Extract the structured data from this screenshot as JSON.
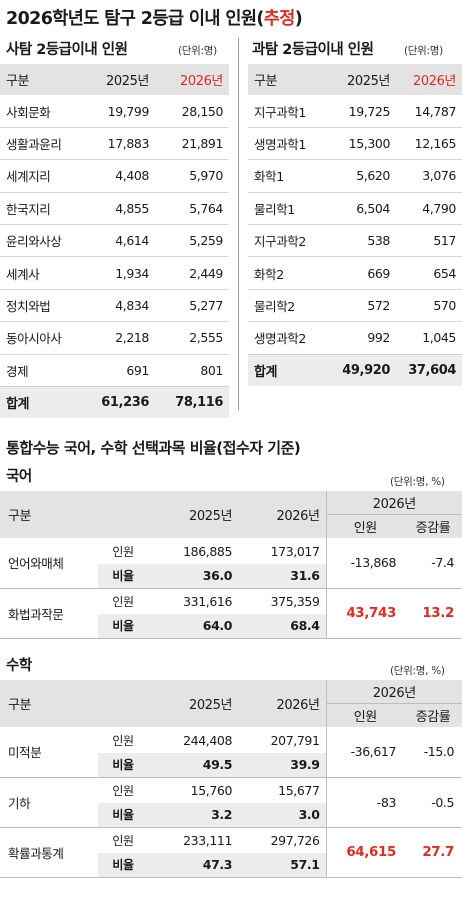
{
  "title": {
    "prefix": "2026학년도 탐구 2등급 이내 인원(",
    "highlight": "추정",
    "suffix": ")"
  },
  "social": {
    "title": "사탐 2등급이내 인원",
    "unit": "(단위:명)",
    "headers": [
      "구분",
      "2025년",
      "2026년"
    ],
    "rows": [
      {
        "name": "사회문화",
        "y2025": "19,799",
        "y2026": "28,150"
      },
      {
        "name": "생활과윤리",
        "y2025": "17,883",
        "y2026": "21,891"
      },
      {
        "name": "세계지리",
        "y2025": "4,408",
        "y2026": "5,970"
      },
      {
        "name": "한국지리",
        "y2025": "4,855",
        "y2026": "5,764"
      },
      {
        "name": "윤리와사상",
        "y2025": "4,614",
        "y2026": "5,259"
      },
      {
        "name": "세계사",
        "y2025": "1,934",
        "y2026": "2,449"
      },
      {
        "name": "정치와법",
        "y2025": "4,834",
        "y2026": "5,277"
      },
      {
        "name": "동아시아사",
        "y2025": "2,218",
        "y2026": "2,555"
      },
      {
        "name": "경제",
        "y2025": "691",
        "y2026": "801"
      }
    ],
    "total": {
      "name": "합계",
      "y2025": "61,236",
      "y2026": "78,116"
    }
  },
  "science": {
    "title": "과탐 2등급이내 인원",
    "unit": "(단위:명)",
    "headers": [
      "구분",
      "2025년",
      "2026년"
    ],
    "rows": [
      {
        "name": "지구과학1",
        "y2025": "19,725",
        "y2026": "14,787"
      },
      {
        "name": "생명과학1",
        "y2025": "15,300",
        "y2026": "12,165"
      },
      {
        "name": "화학1",
        "y2025": "5,620",
        "y2026": "3,076"
      },
      {
        "name": "물리학1",
        "y2025": "6,504",
        "y2026": "4,790"
      },
      {
        "name": "지구과학2",
        "y2025": "538",
        "y2026": "517"
      },
      {
        "name": "화학2",
        "y2025": "669",
        "y2026": "654"
      },
      {
        "name": "물리학2",
        "y2025": "572",
        "y2026": "570"
      },
      {
        "name": "생명과학2",
        "y2025": "992",
        "y2026": "1,045"
      }
    ],
    "total": {
      "name": "합계",
      "y2025": "49,920",
      "y2026": "37,604"
    }
  },
  "section2_title": "통합수능 국어, 수학 선택과목 비율(접수자 기준)",
  "korean": {
    "title": "국어",
    "unit": "(단위:명, %)",
    "h_gubun": "구분",
    "h_2025": "2025년",
    "h_2026": "2026년",
    "h_2026_group": "2026년",
    "h_count": "인원",
    "h_rate": "증감률",
    "label_count": "인원",
    "label_ratio": "비율",
    "subjects": [
      {
        "name": "언어와매체",
        "c2025": "186,885",
        "c2026": "173,017",
        "r2025": "36.0",
        "r2026": "31.6",
        "diff": "-13,868",
        "rate": "-7.4"
      },
      {
        "name": "화법과작문",
        "c2025": "331,616",
        "c2026": "375,359",
        "r2025": "64.0",
        "r2026": "68.4",
        "diff": "43,743",
        "rate": "13.2"
      }
    ]
  },
  "math": {
    "title": "수학",
    "unit": "(단위:명, %)",
    "h_gubun": "구분",
    "h_2025": "2025년",
    "h_2026": "2026년",
    "h_2026_group": "2026년",
    "h_count": "인원",
    "h_rate": "증감률",
    "label_count": "인원",
    "label_ratio": "비율",
    "subjects": [
      {
        "name": "미적분",
        "c2025": "244,408",
        "c2026": "207,791",
        "r2025": "49.5",
        "r2026": "39.9",
        "diff": "-36,617",
        "rate": "-15.0"
      },
      {
        "name": "기하",
        "c2025": "15,760",
        "c2026": "15,677",
        "r2025": "3.2",
        "r2026": "3.0",
        "diff": "-83",
        "rate": "-0.5"
      },
      {
        "name": "확률과통계",
        "c2025": "233,111",
        "c2026": "297,726",
        "r2025": "47.3",
        "r2026": "57.1",
        "diff": "64,615",
        "rate": "27.7"
      }
    ]
  },
  "colors": {
    "accent": "#e02b20",
    "header_bg": "#e3e3e3",
    "total_bg": "#ececec"
  }
}
